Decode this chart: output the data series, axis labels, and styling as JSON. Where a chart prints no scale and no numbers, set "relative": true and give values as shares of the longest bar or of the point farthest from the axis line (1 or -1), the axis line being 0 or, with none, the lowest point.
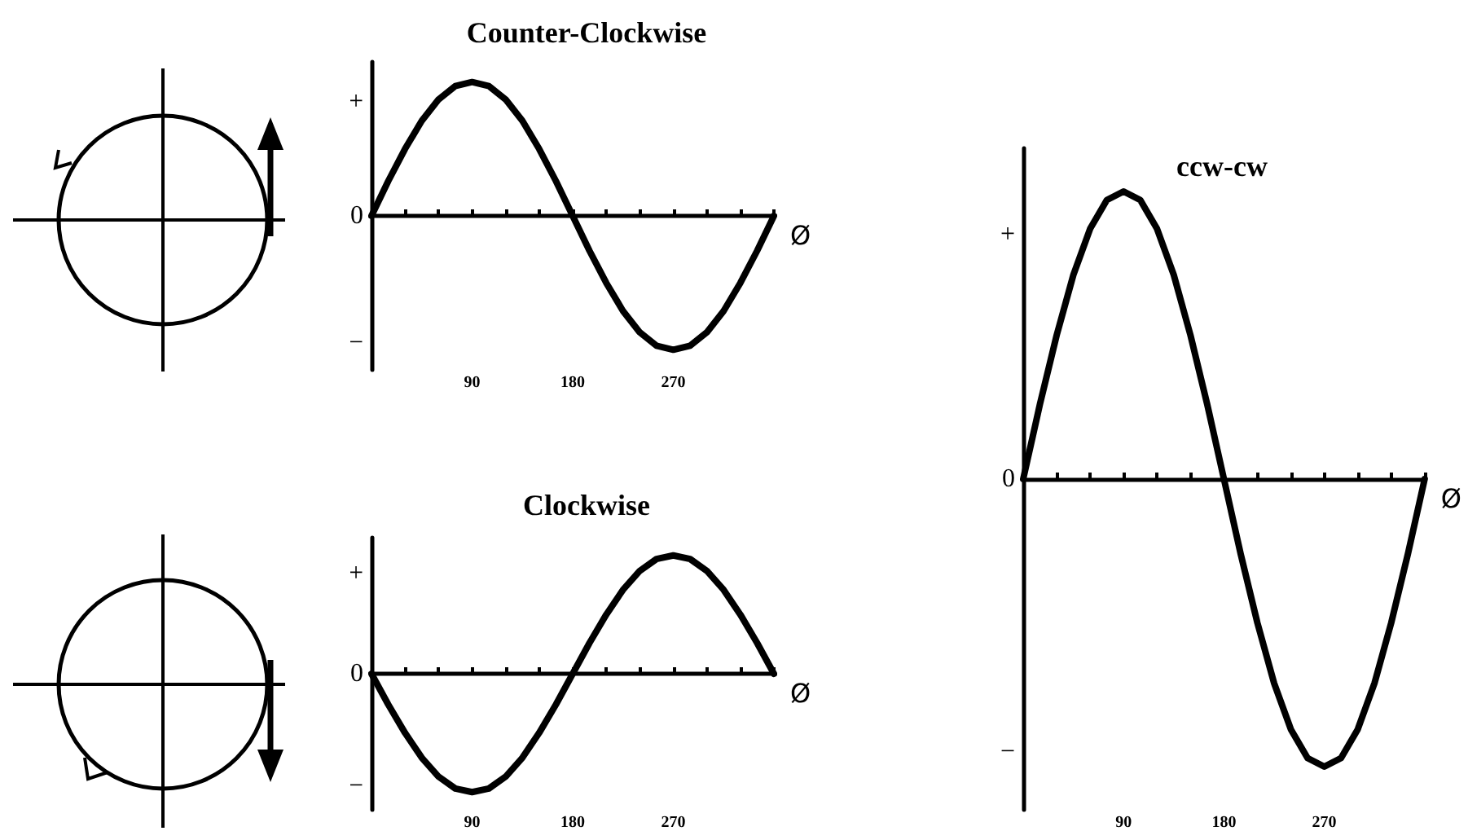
{
  "chart_data": [
    {
      "type": "line",
      "title": "Counter-Clockwise",
      "xlabel": "Ø",
      "relative": true,
      "marker": "none",
      "line_style": "solid",
      "x": [
        0,
        15,
        30,
        45,
        60,
        75,
        90,
        105,
        120,
        135,
        150,
        165,
        180,
        195,
        210,
        225,
        240,
        255,
        270,
        285,
        300,
        315,
        330,
        345,
        360
      ],
      "series": [
        {
          "color": "#000000",
          "values": [
            0,
            0.26,
            0.5,
            0.71,
            0.87,
            0.97,
            1,
            0.97,
            0.87,
            0.71,
            0.5,
            0.26,
            0,
            -0.26,
            -0.5,
            -0.71,
            -0.87,
            -0.97,
            -1,
            -0.97,
            -0.87,
            -0.71,
            -0.5,
            -0.26,
            0
          ]
        }
      ],
      "xlim": [
        0,
        360
      ],
      "xticks": [
        {
          "value": 30,
          "label": null
        },
        {
          "value": 60,
          "label": null
        },
        90,
        {
          "value": 120,
          "label": null
        },
        {
          "value": 150,
          "label": null
        },
        180,
        {
          "value": 210,
          "label": null
        },
        {
          "value": 240,
          "label": null
        },
        270,
        {
          "value": 300,
          "label": null
        },
        {
          "value": 330,
          "label": null
        },
        {
          "value": 360,
          "label": null
        }
      ],
      "annotations": [
        "+",
        "0",
        "−"
      ]
    },
    {
      "type": "line",
      "title": "Clockwise",
      "xlabel": "Ø",
      "relative": true,
      "marker": "none",
      "line_style": "solid",
      "x": [
        0,
        15,
        30,
        45,
        60,
        75,
        90,
        105,
        120,
        135,
        150,
        165,
        180,
        195,
        210,
        225,
        240,
        255,
        270,
        285,
        300,
        315,
        330,
        345,
        360
      ],
      "series": [
        {
          "color": "#000000",
          "values": [
            0,
            -0.26,
            -0.5,
            -0.71,
            -0.87,
            -0.97,
            -1,
            -0.97,
            -0.87,
            -0.71,
            -0.5,
            -0.26,
            0,
            0.26,
            0.5,
            0.71,
            0.87,
            0.97,
            1,
            0.97,
            0.87,
            0.71,
            0.5,
            0.26,
            0
          ]
        }
      ],
      "xlim": [
        0,
        360
      ],
      "xticks": [
        {
          "value": 30,
          "label": null
        },
        {
          "value": 60,
          "label": null
        },
        90,
        {
          "value": 120,
          "label": null
        },
        {
          "value": 150,
          "label": null
        },
        180,
        {
          "value": 210,
          "label": null
        },
        {
          "value": 240,
          "label": null
        },
        270,
        {
          "value": 300,
          "label": null
        },
        {
          "value": 330,
          "label": null
        },
        {
          "value": 360,
          "label": null
        }
      ],
      "annotations": [
        "+",
        "0",
        "−"
      ]
    },
    {
      "type": "line",
      "title": "ccw-cw",
      "xlabel": "Ø",
      "relative": true,
      "marker": "none",
      "line_style": "solid",
      "x": [
        0,
        15,
        30,
        45,
        60,
        75,
        90,
        105,
        120,
        135,
        150,
        165,
        180,
        195,
        210,
        225,
        240,
        255,
        270,
        285,
        300,
        315,
        330,
        345,
        360
      ],
      "series": [
        {
          "color": "#000000",
          "values": [
            0,
            0.26,
            0.5,
            0.71,
            0.87,
            0.97,
            1,
            0.97,
            0.87,
            0.71,
            0.5,
            0.26,
            0,
            -0.26,
            -0.5,
            -0.71,
            -0.87,
            -0.97,
            -1,
            -0.97,
            -0.87,
            -0.71,
            -0.5,
            -0.26,
            0
          ]
        }
      ],
      "xlim": [
        0,
        360
      ],
      "xticks": [
        {
          "value": 30,
          "label": null
        },
        {
          "value": 60,
          "label": null
        },
        90,
        {
          "value": 120,
          "label": null
        },
        {
          "value": 150,
          "label": null
        },
        180,
        {
          "value": 210,
          "label": null
        },
        {
          "value": 240,
          "label": null
        },
        270,
        {
          "value": 300,
          "label": null
        },
        {
          "value": 330,
          "label": null
        },
        {
          "value": 360,
          "label": null
        }
      ],
      "annotations": [
        "+",
        "0",
        "−"
      ]
    }
  ]
}
